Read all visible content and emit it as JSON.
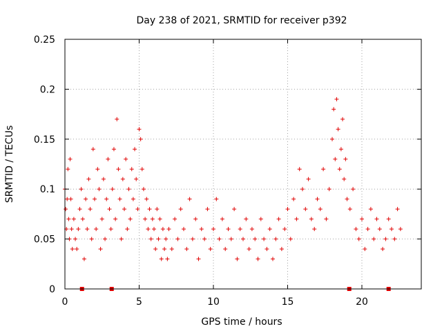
{
  "chart_data": {
    "type": "scatter",
    "title": "Day 238 of 2021, SRMTID for receiver p392",
    "xlabel": "GPS time / hours",
    "ylabel": "SRMTID / TECUs",
    "xlim": [
      0,
      24
    ],
    "ylim": [
      0,
      0.25
    ],
    "xticks": [
      0,
      5,
      10,
      15,
      20
    ],
    "xtick_labels": [
      "0",
      "5",
      "10",
      "15",
      "20"
    ],
    "yticks": [
      0,
      0.05,
      0.1,
      0.15,
      0.2,
      0.25
    ],
    "ytick_labels": [
      "0",
      "0.05",
      "0.1",
      "0.15",
      "0.2",
      "0.25"
    ],
    "grid": true,
    "marker": "+",
    "color": "#e00000",
    "series": [
      {
        "name": "SRMTID",
        "x": [
          0.0,
          0.05,
          0.1,
          0.15,
          0.2,
          0.25,
          0.3,
          0.35,
          0.4,
          0.45,
          0.5,
          0.6,
          0.7,
          0.8,
          0.9,
          1.0,
          1.1,
          1.2,
          1.3,
          1.4,
          1.5,
          1.6,
          1.7,
          1.8,
          1.9,
          2.0,
          2.1,
          2.2,
          2.3,
          2.4,
          2.5,
          2.6,
          2.7,
          2.8,
          2.9,
          3.0,
          3.1,
          3.2,
          3.3,
          3.4,
          3.5,
          3.6,
          3.7,
          3.8,
          3.9,
          4.0,
          4.1,
          4.2,
          4.3,
          4.4,
          4.5,
          4.6,
          4.7,
          4.8,
          4.9,
          5.0,
          5.1,
          5.2,
          5.3,
          5.4,
          5.5,
          5.6,
          5.7,
          5.8,
          5.9,
          6.0,
          6.1,
          6.2,
          6.3,
          6.4,
          6.5,
          6.6,
          6.7,
          6.8,
          6.9,
          7.0,
          7.2,
          7.4,
          7.6,
          7.8,
          8.0,
          8.2,
          8.4,
          8.6,
          8.8,
          9.0,
          9.2,
          9.4,
          9.6,
          9.8,
          10.0,
          10.2,
          10.4,
          10.6,
          10.8,
          11.0,
          11.2,
          11.4,
          11.6,
          11.8,
          12.0,
          12.2,
          12.4,
          12.6,
          12.8,
          13.0,
          13.2,
          13.4,
          13.6,
          13.8,
          14.0,
          14.2,
          14.4,
          14.6,
          14.8,
          15.0,
          15.2,
          15.4,
          15.6,
          15.8,
          16.0,
          16.2,
          16.4,
          16.6,
          16.8,
          17.0,
          17.2,
          17.4,
          17.6,
          17.8,
          18.0,
          18.1,
          18.2,
          18.3,
          18.4,
          18.5,
          18.6,
          18.7,
          18.8,
          18.9,
          19.0,
          19.2,
          19.4,
          19.6,
          19.8,
          20.0,
          20.2,
          20.4,
          20.6,
          20.8,
          21.0,
          21.2,
          21.4,
          21.6,
          21.8,
          22.0,
          22.2,
          22.4,
          22.6
        ],
        "y": [
          0.1,
          0.08,
          0.06,
          0.09,
          0.12,
          0.07,
          0.05,
          0.13,
          0.09,
          0.06,
          0.04,
          0.07,
          0.05,
          0.04,
          0.06,
          0.08,
          0.1,
          0.07,
          0.03,
          0.09,
          0.06,
          0.11,
          0.08,
          0.05,
          0.14,
          0.09,
          0.06,
          0.12,
          0.1,
          0.04,
          0.07,
          0.11,
          0.05,
          0.09,
          0.13,
          0.08,
          0.06,
          0.1,
          0.14,
          0.07,
          0.17,
          0.12,
          0.09,
          0.05,
          0.11,
          0.08,
          0.13,
          0.06,
          0.1,
          0.07,
          0.12,
          0.09,
          0.14,
          0.11,
          0.08,
          0.16,
          0.15,
          0.12,
          0.1,
          0.07,
          0.09,
          0.06,
          0.08,
          0.05,
          0.07,
          0.06,
          0.04,
          0.08,
          0.05,
          0.07,
          0.03,
          0.06,
          0.04,
          0.05,
          0.03,
          0.06,
          0.04,
          0.07,
          0.05,
          0.08,
          0.06,
          0.04,
          0.09,
          0.05,
          0.07,
          0.03,
          0.06,
          0.05,
          0.08,
          0.04,
          0.06,
          0.09,
          0.05,
          0.07,
          0.04,
          0.06,
          0.05,
          0.08,
          0.03,
          0.06,
          0.05,
          0.07,
          0.04,
          0.06,
          0.05,
          0.03,
          0.07,
          0.05,
          0.04,
          0.06,
          0.03,
          0.05,
          0.07,
          0.04,
          0.06,
          0.08,
          0.05,
          0.09,
          0.07,
          0.12,
          0.1,
          0.08,
          0.11,
          0.07,
          0.06,
          0.09,
          0.08,
          0.12,
          0.07,
          0.1,
          0.15,
          0.18,
          0.13,
          0.19,
          0.16,
          0.12,
          0.14,
          0.17,
          0.11,
          0.13,
          0.09,
          0.08,
          0.1,
          0.06,
          0.05,
          0.07,
          0.04,
          0.06,
          0.08,
          0.05,
          0.07,
          0.06,
          0.04,
          0.05,
          0.07,
          0.06,
          0.05,
          0.08,
          0.06
        ]
      }
    ],
    "gap_markers_x": [
      1.15,
      3.15,
      19.15,
      21.8
    ]
  }
}
